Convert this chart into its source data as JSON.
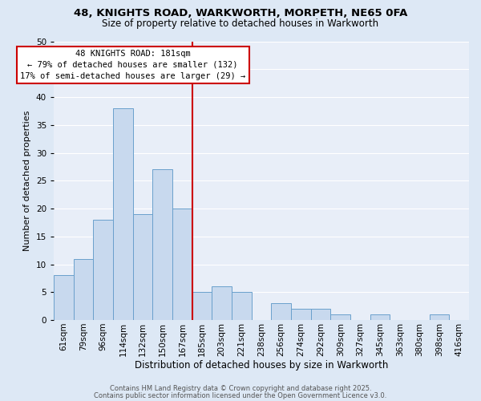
{
  "title": "48, KNIGHTS ROAD, WARKWORTH, MORPETH, NE65 0FA",
  "subtitle": "Size of property relative to detached houses in Warkworth",
  "xlabel": "Distribution of detached houses by size in Warkworth",
  "ylabel": "Number of detached properties",
  "bar_labels": [
    "61sqm",
    "79sqm",
    "96sqm",
    "114sqm",
    "132sqm",
    "150sqm",
    "167sqm",
    "185sqm",
    "203sqm",
    "221sqm",
    "238sqm",
    "256sqm",
    "274sqm",
    "292sqm",
    "309sqm",
    "327sqm",
    "345sqm",
    "363sqm",
    "380sqm",
    "398sqm",
    "416sqm"
  ],
  "bar_values": [
    8,
    11,
    18,
    38,
    19,
    27,
    20,
    5,
    6,
    5,
    0,
    3,
    2,
    2,
    1,
    0,
    1,
    0,
    0,
    1,
    0
  ],
  "bar_color": "#c8d9ee",
  "bar_edge_color": "#6aa0cc",
  "vline_color": "#cc0000",
  "vline_pos": 6.5,
  "annotation_title": "48 KNIGHTS ROAD: 181sqm",
  "annotation_line1": "← 79% of detached houses are smaller (132)",
  "annotation_line2": "17% of semi-detached houses are larger (29) →",
  "annotation_box_color": "#ffffff",
  "annotation_box_edge": "#cc0000",
  "ylim": [
    0,
    50
  ],
  "yticks": [
    0,
    5,
    10,
    15,
    20,
    25,
    30,
    35,
    40,
    45,
    50
  ],
  "footer1": "Contains HM Land Registry data © Crown copyright and database right 2025.",
  "footer2": "Contains public sector information licensed under the Open Government Licence v3.0.",
  "bg_color": "#dde8f5",
  "plot_bg_color": "#e8eef8",
  "grid_color": "#ffffff",
  "title_fontsize": 9.5,
  "subtitle_fontsize": 8.5,
  "xlabel_fontsize": 8.5,
  "ylabel_fontsize": 8.0,
  "tick_fontsize": 7.5,
  "footer_fontsize": 6.0
}
